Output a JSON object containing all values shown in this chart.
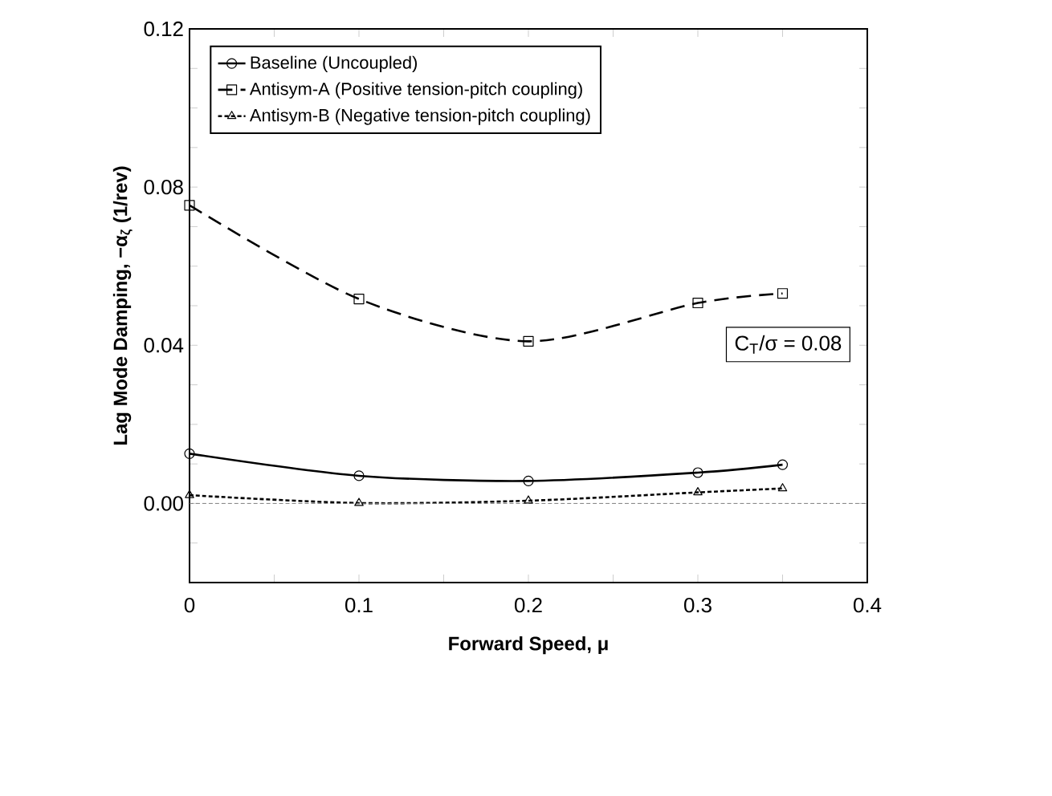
{
  "chart_data": {
    "type": "line",
    "xlabel": "Forward Speed, μ",
    "ylabel": "Lag Mode Damping, −α$_{ζ}$ (1/rev)",
    "annotations": [
      "C$_{T}$/σ = 0.08"
    ],
    "x": [
      0,
      0.1,
      0.2,
      0.3,
      0.35
    ],
    "series": [
      {
        "name": "Baseline (Uncoupled)",
        "color": "#000000",
        "marker": "circle",
        "line_style": "solid",
        "values": [
          0.0126,
          0.007,
          0.0057,
          0.0078,
          0.0098
        ]
      },
      {
        "name": "Antisym-A (Positive tension-pitch coupling)",
        "color": "#000000",
        "marker": "square",
        "line_style": "dashed",
        "values": [
          0.0754,
          0.0517,
          0.041,
          0.0507,
          0.0531
        ]
      },
      {
        "name": "Antisym-B (Negative tension-pitch coupling)",
        "color": "#000000",
        "marker": "triangle",
        "line_style": "dotted",
        "values": [
          0.0021,
          0.0001,
          0.0007,
          0.0028,
          0.0038
        ]
      }
    ],
    "xlim": [
      0,
      0.4
    ],
    "xticks": [
      0,
      {
        "value": 0.05,
        "label": null
      },
      0.1,
      {
        "value": 0.15,
        "label": null
      },
      0.2,
      {
        "value": 0.25,
        "label": null
      },
      0.3,
      {
        "value": 0.35,
        "label": null
      },
      0.4
    ],
    "ylim": [
      -0.02,
      0.12
    ],
    "yticks": [
      {
        "value": -0.01,
        "label": null
      },
      {
        "value": 0,
        "label": "0.00"
      },
      {
        "value": 0.01,
        "label": null
      },
      {
        "value": 0.02,
        "label": null
      },
      {
        "value": 0.03,
        "label": null
      },
      {
        "value": 0.04,
        "label": "0.04"
      },
      {
        "value": 0.05,
        "label": null
      },
      {
        "value": 0.06,
        "label": null
      },
      {
        "value": 0.07,
        "label": null
      },
      {
        "value": 0.08,
        "label": "0.08"
      },
      {
        "value": 0.09,
        "label": null
      },
      {
        "value": 0.1,
        "label": null
      },
      {
        "value": 0.11,
        "label": null
      },
      {
        "value": 0.12,
        "label": "0.12"
      }
    ],
    "ref_lines": [
      {
        "axis": "y",
        "value": 0,
        "color": "#808080",
        "line_style": "dotted"
      }
    ],
    "legend": "top left",
    "grid": false
  }
}
